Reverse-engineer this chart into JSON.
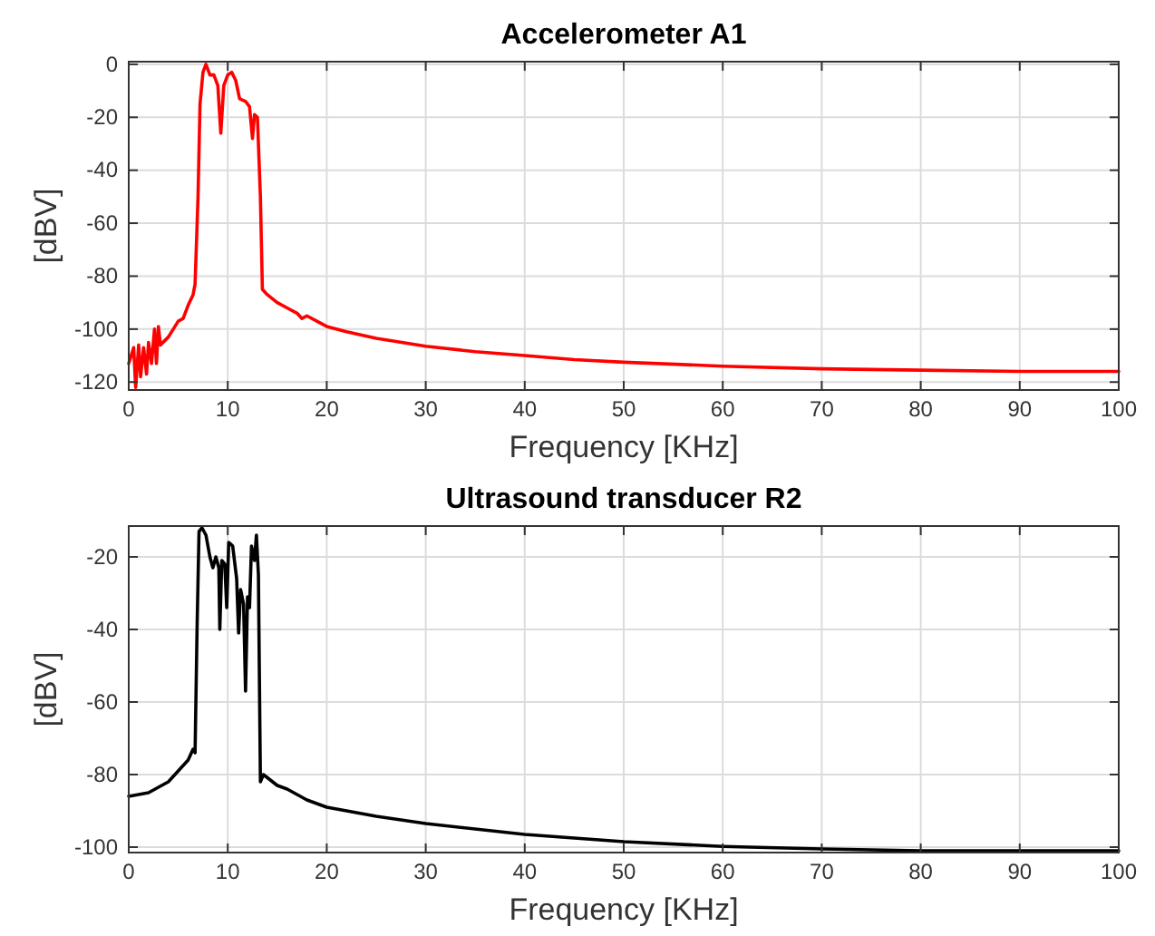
{
  "chart_data": [
    {
      "type": "line",
      "title": "Accelerometer A1",
      "xlabel": "Frequency [KHz]",
      "ylabel": "[dBV]",
      "xlim": [
        0,
        100
      ],
      "xticks": [
        0,
        10,
        20,
        30,
        40,
        50,
        60,
        70,
        80,
        90,
        100
      ],
      "ylim": [
        -123,
        1
      ],
      "yticks": [
        -120,
        -100,
        -80,
        -60,
        -40,
        -20,
        0
      ],
      "grid": true,
      "line_style": "solid",
      "marker": "none",
      "series": [
        {
          "color": "#ff0000",
          "x": [
            0,
            0.5,
            0.7,
            1.0,
            1.2,
            1.5,
            1.8,
            2.0,
            2.3,
            2.6,
            2.8,
            3.0,
            3.2,
            4,
            5,
            5.5,
            6,
            6.5,
            6.7,
            7.0,
            7.2,
            7.5,
            7.8,
            8.2,
            8.6,
            9.0,
            9.3,
            9.6,
            10,
            10.4,
            10.8,
            11.2,
            11.8,
            12.2,
            12.5,
            12.7,
            13.0,
            13.3,
            13.5,
            14,
            15,
            16,
            17,
            17.5,
            18,
            19,
            20,
            22,
            25,
            30,
            35,
            40,
            45,
            50,
            60,
            70,
            80,
            90,
            100
          ],
          "values": [
            -113,
            -107,
            -122,
            -106,
            -118,
            -107,
            -117,
            -105,
            -113,
            -100,
            -113,
            -99,
            -106,
            -103,
            -97,
            -96,
            -91,
            -87,
            -83,
            -50,
            -15,
            -3,
            0,
            -4,
            -4,
            -8,
            -26,
            -8,
            -4,
            -3,
            -6,
            -13,
            -14,
            -16,
            -28,
            -19,
            -20,
            -50,
            -85,
            -87,
            -90,
            -92,
            -94,
            -96,
            -95,
            -97,
            -99,
            -101,
            -103.5,
            -106.5,
            -108.5,
            -110,
            -111.5,
            -112.5,
            -114,
            -115,
            -115.5,
            -116,
            -116
          ]
        }
      ]
    },
    {
      "type": "line",
      "title": "Ultrasound transducer R2",
      "xlabel": "Frequency [KHz]",
      "ylabel": "[dBV]",
      "xlim": [
        0,
        100
      ],
      "xticks": [
        0,
        10,
        20,
        30,
        40,
        50,
        60,
        70,
        80,
        90,
        100
      ],
      "ylim": [
        -101.5,
        -11.5
      ],
      "yticks": [
        -100,
        -80,
        -60,
        -40,
        -20
      ],
      "grid": true,
      "line_style": "solid",
      "marker": "none",
      "series": [
        {
          "color": "#000000",
          "x": [
            0,
            2,
            4,
            5,
            6,
            6.5,
            6.7,
            6.9,
            7.1,
            7.4,
            7.8,
            8.2,
            8.5,
            8.8,
            9.1,
            9.2,
            9.4,
            9.7,
            9.9,
            10.1,
            10.5,
            10.9,
            11.1,
            11.3,
            11.6,
            11.8,
            12,
            12.2,
            12.4,
            12.7,
            12.9,
            13.1,
            13.3,
            13.6,
            15,
            16,
            18,
            20,
            25,
            30,
            40,
            50,
            60,
            70,
            80,
            100
          ],
          "values": [
            -86,
            -85,
            -82,
            -79,
            -76,
            -73,
            -74,
            -40,
            -13,
            -12,
            -14,
            -20,
            -23,
            -20,
            -23,
            -40,
            -21,
            -22,
            -34,
            -16,
            -17,
            -26,
            -41,
            -29,
            -33,
            -57,
            -31,
            -34,
            -17,
            -21,
            -14,
            -25,
            -82,
            -80,
            -83,
            -84,
            -87,
            -89,
            -91.5,
            -93.5,
            -96.5,
            -98.5,
            -99.8,
            -100.5,
            -101,
            -101
          ]
        }
      ]
    }
  ]
}
